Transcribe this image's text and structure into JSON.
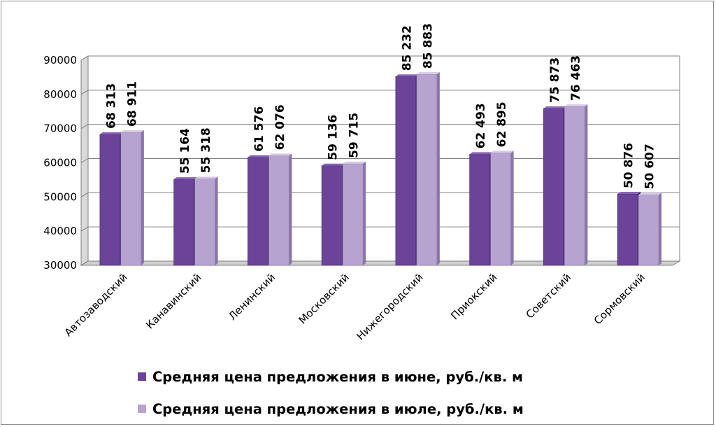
{
  "colors": {
    "series1": "#6b4499",
    "series1_dark": "#3f2466",
    "series1_light": "#8a64b5",
    "series2": "#b7a3d0",
    "series2_dark": "#8a76a8",
    "series2_light": "#d6cae6",
    "grid": "#808080",
    "wall": "#eeeeee"
  },
  "chart_data": {
    "type": "bar",
    "categories": [
      "Автозаводский",
      "Канавинский",
      "Ленинский",
      "Московский",
      "Нижегородский",
      "Приокский",
      "Советский",
      "Сормовский"
    ],
    "series": [
      {
        "name": "Средняя цена предложения в июне, руб./кв. м",
        "values": [
          68313,
          55164,
          61576,
          59136,
          85232,
          62493,
          75873,
          50876
        ],
        "labels": [
          "68 313",
          "55 164",
          "61 576",
          "59 136",
          "85 232",
          "62 493",
          "75 873",
          "50 876"
        ]
      },
      {
        "name": "Средняя цена предложения в июле, руб./кв. м",
        "values": [
          68911,
          55318,
          62076,
          59715,
          85883,
          62895,
          76463,
          50607
        ],
        "labels": [
          "68 911",
          "55 318",
          "62 076",
          "59 715",
          "85 883",
          "62 895",
          "76 463",
          "50 607"
        ]
      }
    ],
    "yticks": [
      "30000",
      "40000",
      "50000",
      "60000",
      "70000",
      "80000",
      "90000"
    ],
    "ylim": [
      30000,
      90000
    ],
    "grid": true,
    "legend_position": "bottom"
  }
}
